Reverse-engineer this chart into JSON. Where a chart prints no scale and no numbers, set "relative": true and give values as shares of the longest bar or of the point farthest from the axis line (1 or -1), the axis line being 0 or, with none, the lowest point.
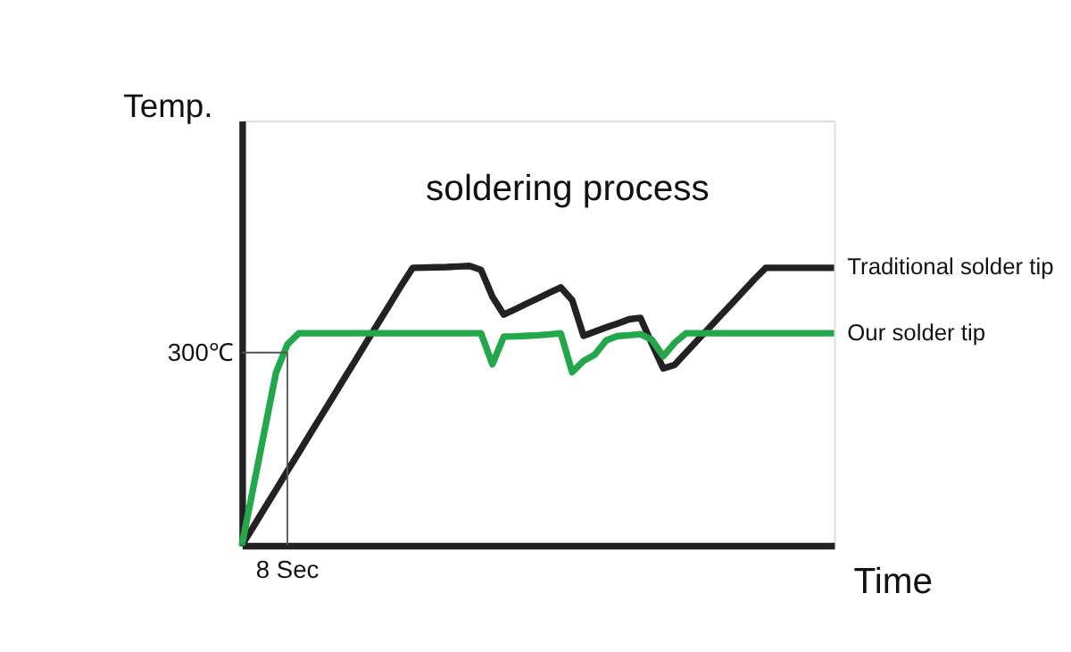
{
  "chart_data": {
    "type": "line",
    "relative": true,
    "xlabel": "Time",
    "ylabel": "Temp.",
    "marker": "none",
    "line_style": "solid",
    "categories": [
      null,
      null,
      null,
      null,
      null,
      null,
      null,
      null,
      null,
      null,
      null,
      null,
      null,
      null,
      null,
      null,
      null,
      null,
      null,
      null,
      null,
      null,
      null,
      null,
      null,
      null,
      null,
      null,
      null,
      null,
      null,
      null,
      null,
      null,
      null,
      null,
      null,
      null,
      null,
      null,
      null,
      null,
      null,
      null,
      null,
      null,
      null,
      null,
      null,
      null,
      null,
      null,
      null
    ],
    "series": [
      {
        "name": "Traditional solder tip",
        "color": "#222222",
        "values": [
          0,
          0.066,
          0.133,
          0.199,
          0.266,
          0.332,
          0.399,
          0.465,
          0.531,
          0.598,
          0.664,
          0.731,
          0.797,
          0.863,
          0.93,
          0.993,
          0.994,
          0.995,
          0.996,
          0.998,
          1,
          0.986,
          0.89,
          0.826,
          0.845,
          0.865,
          0.884,
          0.904,
          0.923,
          0.878,
          0.75,
          0.765,
          0.78,
          0.794,
          0.809,
          0.814,
          0.722,
          0.633,
          0.646,
          0.69,
          0.734,
          0.777,
          0.821,
          0.864,
          0.908,
          0.952,
          0.993,
          0.993,
          0.993,
          0.993,
          0.993,
          0.993,
          0.993
        ]
      },
      {
        "name": "Our solder tip",
        "color": "#22a84a",
        "values": [
          0,
          0.206,
          0.412,
          0.618,
          0.719,
          0.759,
          0.759,
          0.759,
          0.759,
          0.759,
          0.759,
          0.759,
          0.759,
          0.759,
          0.759,
          0.759,
          0.759,
          0.759,
          0.759,
          0.759,
          0.759,
          0.759,
          0.648,
          0.747,
          0.748,
          0.75,
          0.752,
          0.755,
          0.759,
          0.62,
          0.66,
          0.683,
          0.734,
          0.749,
          0.752,
          0.756,
          0.736,
          0.677,
          0.725,
          0.759,
          0.759,
          0.759,
          0.759,
          0.759,
          0.759,
          0.759,
          0.759,
          0.759,
          0.759,
          0.759,
          0.759,
          0.759,
          0.759
        ]
      }
    ],
    "ref_lines": [
      {
        "axis": "y",
        "value": 0.69,
        "label": "300℃",
        "color": "#555555"
      }
    ],
    "annotations": [
      "soldering process",
      "8 Sec"
    ]
  }
}
